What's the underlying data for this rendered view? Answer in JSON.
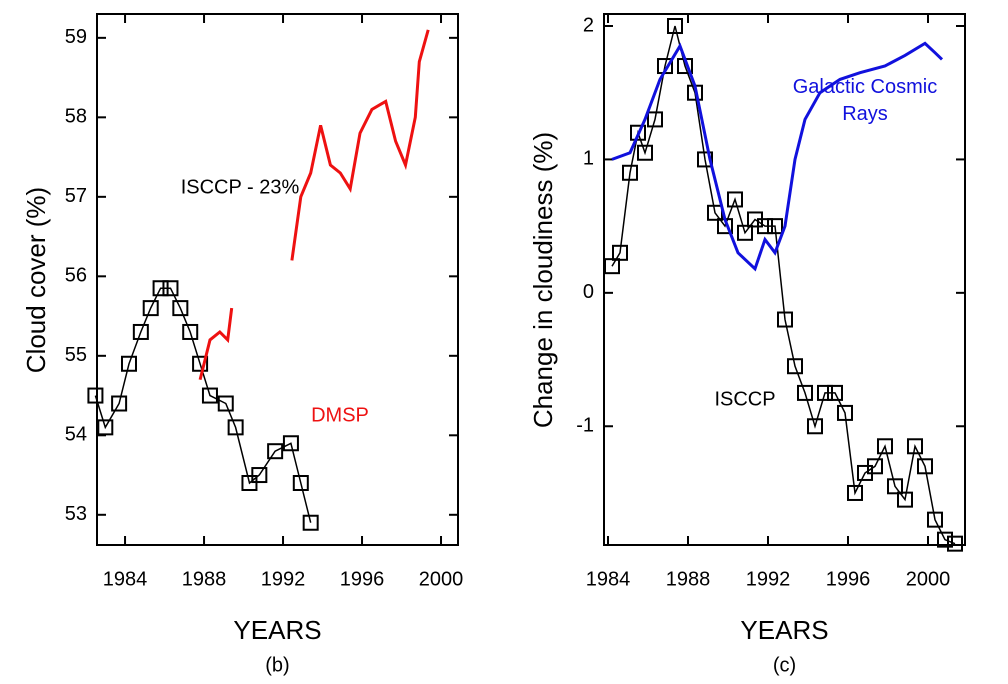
{
  "chart_data": [
    {
      "type": "line",
      "subtitle": "(b)",
      "xlabel": "YEARS",
      "ylabel": "Cloud cover (%)",
      "xlim": [
        1982.58,
        2000.86
      ],
      "ylim": [
        52.62,
        59.3
      ],
      "xticks": [
        1984,
        1988,
        1992,
        1996,
        2000
      ],
      "yticks": [
        53,
        54,
        55,
        56,
        57,
        58,
        59
      ],
      "series": [
        {
          "name": "ISCCP - 23%",
          "color": "#000000",
          "marker": "square",
          "x": [
            1982.5,
            1983.0,
            1983.7,
            1984.2,
            1984.8,
            1985.3,
            1985.8,
            1986.3,
            1986.8,
            1987.3,
            1987.8,
            1988.3,
            1989.1,
            1989.6,
            1990.3,
            1990.8,
            1991.6,
            1992.4,
            1992.9,
            1993.4
          ],
          "values": [
            54.5,
            54.1,
            54.4,
            54.9,
            55.3,
            55.6,
            55.85,
            55.85,
            55.6,
            55.3,
            54.9,
            54.5,
            54.4,
            54.1,
            53.4,
            53.5,
            53.8,
            53.9,
            53.4,
            52.9
          ]
        },
        {
          "name": "DMSP",
          "color": "#ee1111",
          "x": [
            1987.8,
            1988.3,
            1988.8,
            1989.2,
            1989.4,
            null,
            1992.45,
            1992.9,
            1993.4,
            1993.9,
            1994.4,
            1994.9,
            1995.4,
            1995.9,
            1996.5,
            1997.2,
            1997.7,
            1998.2,
            1998.7,
            1998.9,
            1999.35
          ],
          "values": [
            54.7,
            55.2,
            55.3,
            55.2,
            55.6,
            null,
            56.2,
            57.0,
            57.3,
            57.9,
            57.4,
            57.3,
            57.1,
            57.8,
            58.1,
            58.2,
            57.7,
            57.4,
            58.0,
            58.7,
            59.1
          ]
        }
      ]
    },
    {
      "type": "line",
      "subtitle": "(c)",
      "xlabel": "YEARS",
      "ylabel": "Change in cloudiness (%)",
      "xlim": [
        1983.8,
        2001.85
      ],
      "ylim": [
        -1.89,
        2.09
      ],
      "xticks": [
        1984,
        1988,
        1992,
        1996,
        2000
      ],
      "yticks": [
        -1,
        0,
        1,
        2
      ],
      "series": [
        {
          "name": "ISCCP",
          "color": "#000000",
          "marker": "square",
          "x": [
            1984.2,
            1984.6,
            1985.1,
            1985.5,
            1985.85,
            1986.35,
            1986.85,
            1987.35,
            1987.85,
            1988.35,
            1988.85,
            1989.35,
            1989.85,
            1990.35,
            1990.85,
            1991.35,
            1991.85,
            1992.35,
            1992.85,
            1993.35,
            1993.85,
            1994.35,
            1994.85,
            1995.35,
            1995.85,
            1996.35,
            1996.85,
            1997.35,
            1997.85,
            1998.35,
            1998.85,
            1999.35,
            1999.85,
            2000.35,
            2000.85,
            2001.35
          ],
          "values": [
            0.2,
            0.3,
            0.9,
            1.2,
            1.05,
            1.3,
            1.7,
            2.0,
            1.7,
            1.5,
            1.0,
            0.6,
            0.5,
            0.7,
            0.45,
            0.55,
            0.5,
            0.5,
            -0.2,
            -0.55,
            -0.75,
            -1.0,
            -0.75,
            -0.75,
            -0.9,
            -1.5,
            -1.35,
            -1.3,
            -1.15,
            -1.45,
            -1.55,
            -1.15,
            -1.3,
            -1.7,
            -1.85,
            -1.88
          ]
        },
        {
          "name": "Galactic Cosmic Rays",
          "color": "#1111dd",
          "x": [
            1984.2,
            1985.1,
            1985.85,
            1986.6,
            1987.6,
            1988.35,
            1989.1,
            1989.85,
            1990.5,
            1991.35,
            1991.85,
            1992.35,
            1992.85,
            1993.35,
            1993.85,
            1994.6,
            1995.6,
            1996.6,
            1997.85,
            1998.85,
            1999.85,
            2000.35,
            2000.7
          ],
          "values": [
            1.0,
            1.05,
            1.3,
            1.6,
            1.85,
            1.55,
            1.0,
            0.55,
            0.3,
            0.18,
            0.4,
            0.3,
            0.5,
            1.0,
            1.3,
            1.5,
            1.6,
            1.65,
            1.7,
            1.78,
            1.87,
            1.8,
            1.75
          ]
        }
      ]
    }
  ]
}
